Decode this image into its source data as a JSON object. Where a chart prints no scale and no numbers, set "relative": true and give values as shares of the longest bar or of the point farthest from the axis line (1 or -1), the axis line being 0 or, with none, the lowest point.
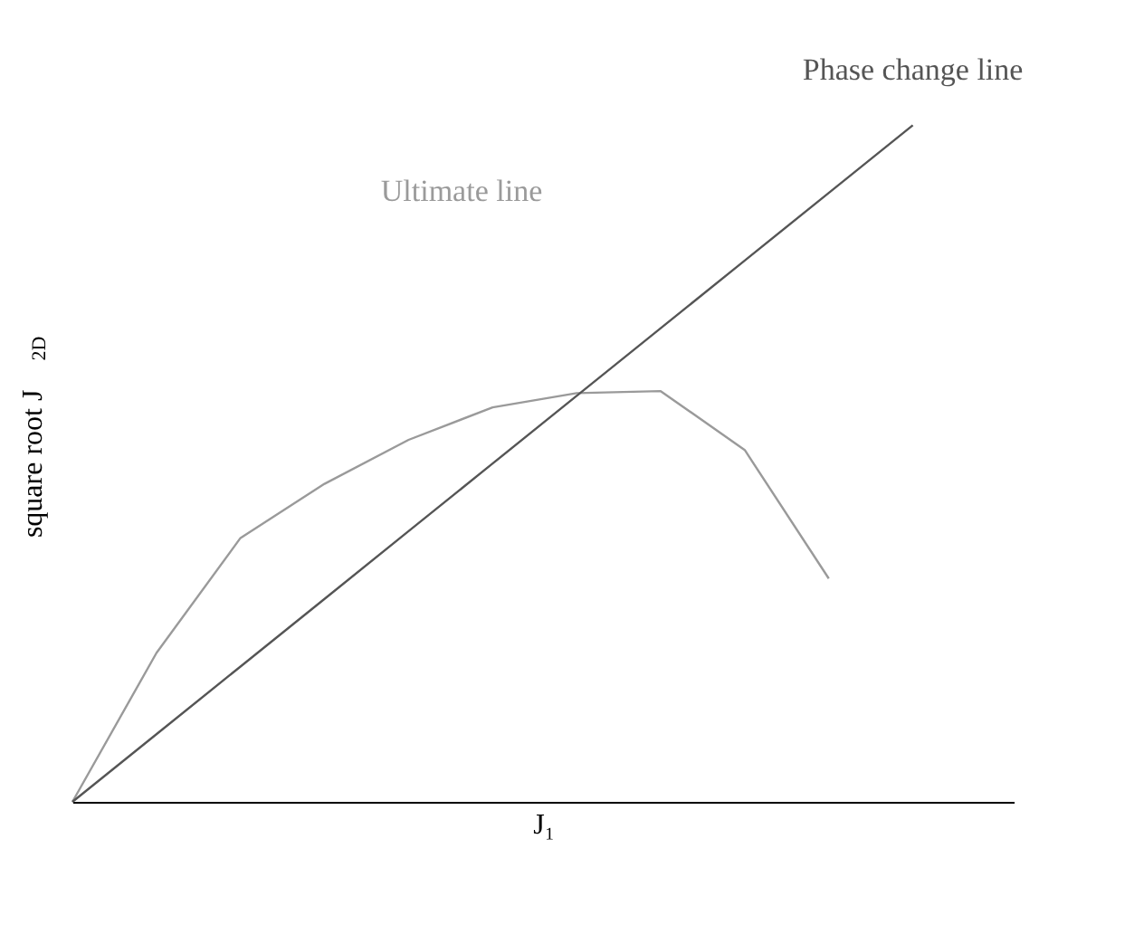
{
  "chart_data": {
    "type": "line",
    "relative": true,
    "xlabel": "J₁",
    "ylabel": "square root J$_{2D}$",
    "categories": [
      null,
      null,
      null,
      null,
      null,
      null,
      null,
      null,
      null,
      null,
      null
    ],
    "series": [
      {
        "name": "Ultimate line",
        "color": "#9a9a9a",
        "values": [
          0,
          0.22,
          0.39,
          0.47,
          0.535,
          0.583,
          0.604,
          0.607,
          0.52,
          0.33,
          null
        ]
      },
      {
        "name": "Phase change line",
        "color": "#555555",
        "values": [
          0,
          0.1,
          0.2,
          0.3,
          0.4,
          0.5,
          0.6,
          0.7,
          0.8,
          0.9,
          1
        ]
      }
    ]
  }
}
